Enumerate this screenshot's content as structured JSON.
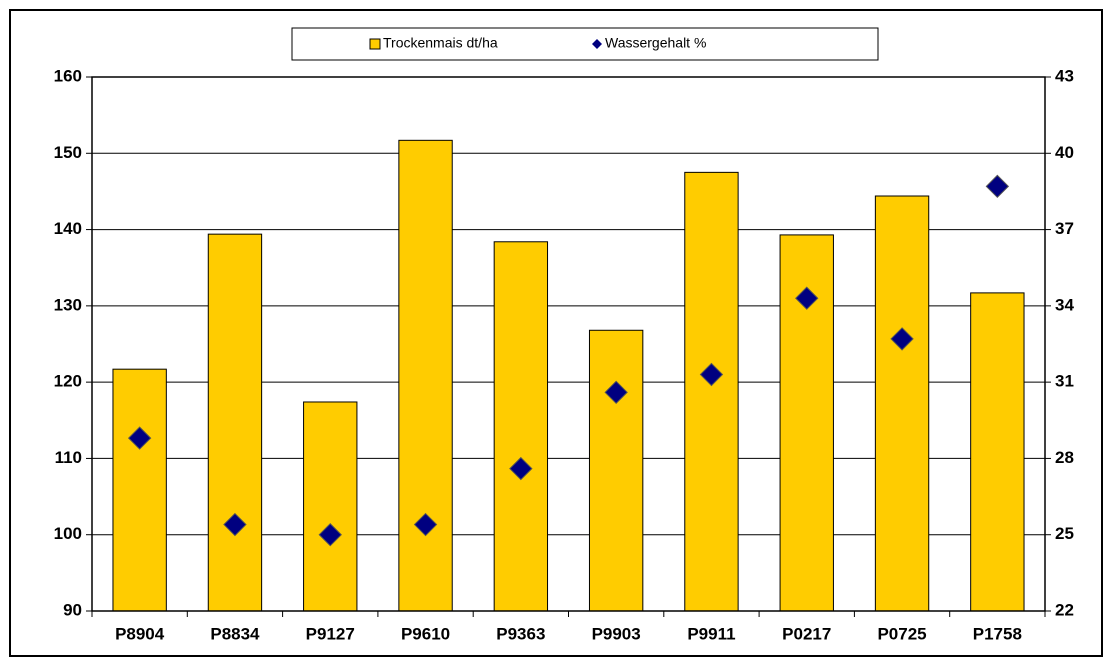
{
  "chart_data": {
    "type": "bar",
    "categories": [
      "P8904",
      "P8834",
      "P9127",
      "P9610",
      "P9363",
      "P9903",
      "P9911",
      "P0217",
      "P0725",
      "P1758"
    ],
    "series": [
      {
        "name": "Trockenmais dt/ha",
        "type": "bar",
        "color": "#ffcc00",
        "values": [
          121.7,
          139.4,
          117.4,
          151.7,
          138.4,
          126.8,
          147.5,
          139.3,
          144.4,
          131.7
        ]
      },
      {
        "name": "Wassergehalt %",
        "type": "scatter",
        "axis": "y2",
        "color": "#000080",
        "values": [
          28.8,
          25.4,
          25.0,
          25.4,
          27.6,
          30.6,
          31.3,
          34.3,
          32.7,
          38.7
        ]
      }
    ],
    "ylim": [
      90,
      160
    ],
    "yticks": [
      90,
      100,
      110,
      120,
      130,
      140,
      150,
      160
    ],
    "y2lim": [
      22,
      43
    ],
    "y2ticks": [
      22,
      25,
      28,
      31,
      34,
      37,
      40,
      43
    ],
    "grid": true,
    "legend": "top"
  }
}
